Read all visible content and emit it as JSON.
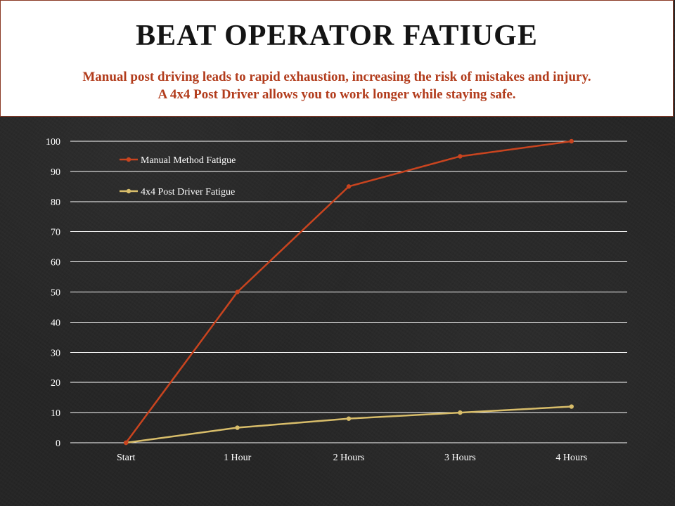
{
  "header": {
    "title": "BEAT OPERATOR FATIUGE",
    "subtitle_line1": "Manual post driving leads to rapid exhaustion, increasing the risk of mistakes and injury.",
    "subtitle_line2": "A 4x4 Post Driver allows you to work longer while staying safe."
  },
  "colors": {
    "manual": "#c9441f",
    "post_driver": "#d8bd6a",
    "gridline": "#ffffff",
    "subtitle": "#b23c1c"
  },
  "chart_data": {
    "type": "line",
    "title": "",
    "xlabel": "",
    "ylabel": "",
    "categories": [
      "Start",
      "1 Hour",
      "2 Hours",
      "3 Hours",
      "4 Hours"
    ],
    "ylim": [
      0,
      100
    ],
    "yticks": [
      0,
      10,
      20,
      30,
      40,
      50,
      60,
      70,
      80,
      90,
      100
    ],
    "grid": true,
    "legend": "top-left",
    "series": [
      {
        "name": "Manual Method Fatigue",
        "values": [
          0,
          50,
          85,
          95,
          100
        ],
        "color": "#c9441f"
      },
      {
        "name": "4x4 Post Driver Fatigue",
        "values": [
          0,
          5,
          8,
          10,
          12
        ],
        "color": "#d8bd6a"
      }
    ]
  }
}
